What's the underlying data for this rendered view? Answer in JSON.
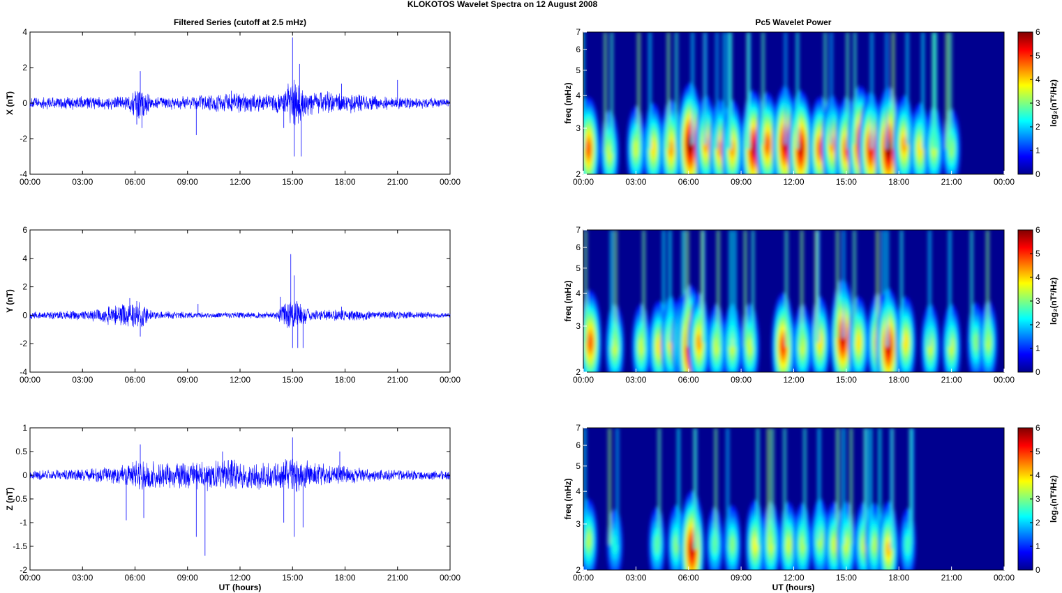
{
  "figure": {
    "title": "KLOKOTOS Wavelet Spectra on 12 August    2008",
    "left_title": "Filtered Series (cutoff at 2.5 mHz)",
    "right_title": "Pc5 Wavelet Power",
    "xlabel": "UT (hours)"
  },
  "colors": {
    "trace": "#0000ff",
    "background": "#00008f"
  },
  "chart_data": [
    {
      "type": "line",
      "name": "X filtered series",
      "ylabel": "X (nT)",
      "xlim": [
        0,
        24
      ],
      "ylim": [
        -4,
        4
      ],
      "xticks": [
        "00:00",
        "03:00",
        "06:00",
        "09:00",
        "12:00",
        "15:00",
        "18:00",
        "21:00",
        "00:00"
      ],
      "yticks": [
        -4,
        -2,
        0,
        2,
        4
      ],
      "envelope": [
        [
          0,
          0.25
        ],
        [
          3,
          0.3
        ],
        [
          5.5,
          0.3
        ],
        [
          6.2,
          0.8
        ],
        [
          7,
          0.3
        ],
        [
          9,
          0.3
        ],
        [
          11,
          0.45
        ],
        [
          13,
          0.4
        ],
        [
          14.5,
          0.45
        ],
        [
          15,
          1.2
        ],
        [
          16,
          0.6
        ],
        [
          18,
          0.45
        ],
        [
          20,
          0.3
        ],
        [
          22,
          0.25
        ],
        [
          24,
          0.2
        ]
      ],
      "spikes": [
        [
          6.3,
          1.8
        ],
        [
          6.4,
          -1.4
        ],
        [
          6.1,
          -1.2
        ],
        [
          9.5,
          -1.8
        ],
        [
          11.5,
          0.7
        ],
        [
          14.5,
          -1.4
        ],
        [
          15.0,
          3.7
        ],
        [
          15.1,
          -3.0
        ],
        [
          15.4,
          2.2
        ],
        [
          15.5,
          -3.0
        ],
        [
          17.8,
          1.1
        ],
        [
          21.0,
          1.3
        ]
      ]
    },
    {
      "type": "line",
      "name": "Y filtered series",
      "ylabel": "Y (nT)",
      "xlim": [
        0,
        24
      ],
      "ylim": [
        -4,
        6
      ],
      "xticks": [
        "00:00",
        "03:00",
        "06:00",
        "09:00",
        "12:00",
        "15:00",
        "18:00",
        "21:00",
        "00:00"
      ],
      "yticks": [
        -4,
        -2,
        0,
        2,
        4,
        6
      ],
      "envelope": [
        [
          0,
          0.2
        ],
        [
          3,
          0.25
        ],
        [
          4.5,
          0.5
        ],
        [
          6.2,
          0.8
        ],
        [
          7,
          0.25
        ],
        [
          10,
          0.15
        ],
        [
          14,
          0.2
        ],
        [
          15,
          1.0
        ],
        [
          16,
          0.3
        ],
        [
          18,
          0.3
        ],
        [
          24,
          0.15
        ]
      ],
      "spikes": [
        [
          5.7,
          1.2
        ],
        [
          6.3,
          -1.5
        ],
        [
          6.1,
          1.0
        ],
        [
          9.6,
          0.8
        ],
        [
          14.3,
          1.3
        ],
        [
          14.9,
          4.3
        ],
        [
          15.0,
          -2.3
        ],
        [
          15.1,
          2.8
        ],
        [
          15.3,
          -2.3
        ],
        [
          15.6,
          -2.3
        ],
        [
          17.8,
          0.6
        ]
      ]
    },
    {
      "type": "line",
      "name": "Z filtered series",
      "ylabel": "Z (nT)",
      "xlim": [
        0,
        24
      ],
      "ylim": [
        -2,
        1
      ],
      "xticks": [
        "00:00",
        "03:00",
        "06:00",
        "09:00",
        "12:00",
        "15:00",
        "18:00",
        "21:00",
        "00:00"
      ],
      "yticks": [
        -2,
        -1.5,
        -1,
        -0.5,
        0,
        0.5,
        1
      ],
      "envelope": [
        [
          0,
          0.08
        ],
        [
          3,
          0.1
        ],
        [
          5,
          0.15
        ],
        [
          6.3,
          0.25
        ],
        [
          8,
          0.2
        ],
        [
          10,
          0.25
        ],
        [
          12,
          0.25
        ],
        [
          14,
          0.2
        ],
        [
          15,
          0.3
        ],
        [
          16.5,
          0.2
        ],
        [
          18,
          0.15
        ],
        [
          20,
          0.1
        ],
        [
          24,
          0.07
        ]
      ],
      "spikes": [
        [
          5.5,
          -0.95
        ],
        [
          6.3,
          0.65
        ],
        [
          6.5,
          -0.9
        ],
        [
          9.5,
          -1.3
        ],
        [
          10.0,
          -1.7
        ],
        [
          11.0,
          0.5
        ],
        [
          14.5,
          -1.0
        ],
        [
          15.0,
          0.8
        ],
        [
          15.1,
          -1.3
        ],
        [
          15.6,
          -1.1
        ],
        [
          17.7,
          0.5
        ]
      ]
    },
    {
      "type": "heatmap",
      "name": "X wavelet power",
      "ylabel": "freq (mHz)",
      "colorbar_label": "log₂(nT²/Hz)",
      "xlim": [
        0,
        24
      ],
      "ylim": [
        2,
        7
      ],
      "yscale": "log",
      "clim": [
        0,
        6
      ],
      "xticks": [
        "00:00",
        "03:00",
        "06:00",
        "09:00",
        "12:00",
        "15:00",
        "18:00",
        "21:00",
        "00:00"
      ],
      "yticks": [
        2,
        3,
        4,
        5,
        6,
        7
      ],
      "cticks": [
        0,
        1,
        2,
        3,
        4,
        5,
        6
      ],
      "blobs": [
        [
          0.3,
          2.5,
          4.5
        ],
        [
          1.5,
          2.4,
          3
        ],
        [
          3,
          2.5,
          3
        ],
        [
          4,
          2.5,
          3.5
        ],
        [
          5,
          2.5,
          4
        ],
        [
          6.1,
          2.6,
          6
        ],
        [
          7,
          2.6,
          4
        ],
        [
          7.8,
          2.5,
          4
        ],
        [
          8.5,
          2.5,
          4
        ],
        [
          9.7,
          2.5,
          5.5
        ],
        [
          10.5,
          2.6,
          4.5
        ],
        [
          11.5,
          2.6,
          5.5
        ],
        [
          12.4,
          2.5,
          5.5
        ],
        [
          13.5,
          2.5,
          4.5
        ],
        [
          14.2,
          2.6,
          4
        ],
        [
          15,
          2.5,
          4.5
        ],
        [
          15.8,
          2.6,
          5.5
        ],
        [
          16.4,
          2.5,
          5.2
        ],
        [
          17.4,
          2.5,
          6
        ],
        [
          18.3,
          2.6,
          4
        ],
        [
          19.2,
          2.5,
          3.5
        ],
        [
          20,
          2.5,
          3
        ],
        [
          21,
          2.5,
          2.6
        ]
      ]
    },
    {
      "type": "heatmap",
      "name": "Y wavelet power",
      "ylabel": "freq (mHz)",
      "colorbar_label": "log₂(nT²/Hz)",
      "xlim": [
        0,
        24
      ],
      "ylim": [
        2,
        7
      ],
      "yscale": "log",
      "clim": [
        0,
        6
      ],
      "xticks": [
        "00:00",
        "03:00",
        "06:00",
        "09:00",
        "12:00",
        "15:00",
        "18:00",
        "21:00",
        "00:00"
      ],
      "yticks": [
        2,
        3,
        4,
        5,
        6,
        7
      ],
      "cticks": [
        0,
        1,
        2,
        3,
        4,
        5,
        6
      ],
      "blobs": [
        [
          0.4,
          2.6,
          4.5
        ],
        [
          1.8,
          2.5,
          3
        ],
        [
          3.3,
          2.5,
          3
        ],
        [
          4.3,
          2.5,
          3.5
        ],
        [
          5,
          2.6,
          3.5
        ],
        [
          5.6,
          2.6,
          3.5
        ],
        [
          6.1,
          2.5,
          6
        ],
        [
          6.6,
          2.6,
          4
        ],
        [
          7.6,
          2.5,
          3
        ],
        [
          8.5,
          2.5,
          3
        ],
        [
          9.5,
          2.5,
          3
        ],
        [
          11.4,
          2.5,
          4.8
        ],
        [
          12.5,
          2.5,
          3
        ],
        [
          13.5,
          2.6,
          3.5
        ],
        [
          14.8,
          2.7,
          5.5
        ],
        [
          15.7,
          2.6,
          3.5
        ],
        [
          16.8,
          2.6,
          4
        ],
        [
          17.4,
          2.5,
          5.5
        ],
        [
          18.4,
          2.6,
          3.5
        ],
        [
          19.8,
          2.5,
          3
        ],
        [
          21,
          2.5,
          3
        ],
        [
          22.4,
          2.6,
          2.5
        ],
        [
          23.1,
          2.6,
          2.8
        ]
      ]
    },
    {
      "type": "heatmap",
      "name": "Z wavelet power",
      "ylabel": "freq (mHz)",
      "colorbar_label": "log₂(nT²/Hz)",
      "xlim": [
        0,
        24
      ],
      "ylim": [
        2,
        7
      ],
      "yscale": "log",
      "clim": [
        0,
        6
      ],
      "xticks": [
        "00:00",
        "03:00",
        "06:00",
        "09:00",
        "12:00",
        "15:00",
        "18:00",
        "21:00",
        "00:00"
      ],
      "yticks": [
        2,
        3,
        4,
        5,
        6,
        7
      ],
      "cticks": [
        0,
        1,
        2,
        3,
        4,
        5,
        6
      ],
      "blobs": [
        [
          0.3,
          2.6,
          2.8
        ],
        [
          1.8,
          2.5,
          1.8
        ],
        [
          4.2,
          2.5,
          2.2
        ],
        [
          5.3,
          2.5,
          2.5
        ],
        [
          6.2,
          2.4,
          5.5
        ],
        [
          7.5,
          2.5,
          2.2
        ],
        [
          8.5,
          2.5,
          2.5
        ],
        [
          9.8,
          2.5,
          3.3
        ],
        [
          10.7,
          2.5,
          3
        ],
        [
          11.7,
          2.5,
          3
        ],
        [
          12.5,
          2.5,
          2.8
        ],
        [
          13.5,
          2.6,
          2.8
        ],
        [
          14.3,
          2.5,
          3
        ],
        [
          15,
          2.5,
          3
        ],
        [
          16,
          2.5,
          3
        ],
        [
          16.6,
          2.5,
          2.8
        ],
        [
          17.4,
          2.4,
          3.8
        ],
        [
          18.5,
          2.5,
          2
        ]
      ]
    }
  ]
}
